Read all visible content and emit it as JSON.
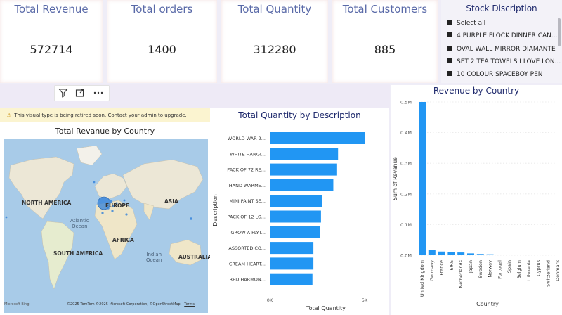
{
  "kpis": [
    {
      "title": "Total Revenue",
      "value": "572714"
    },
    {
      "title": "Total orders",
      "value": "1400"
    },
    {
      "title": "Total Quantity",
      "value": "312280"
    },
    {
      "title": "Total Customers",
      "value": "885"
    }
  ],
  "slicer": {
    "title": "Stock Discription",
    "items": [
      "Select all",
      "4 PURPLE FLOCK DINNER CAN...",
      "OVAL WALL MIRROR DIAMANTE",
      "SET 2 TEA TOWELS I LOVE LON...",
      "10 COLOUR SPACEBOY PEN"
    ]
  },
  "map": {
    "warning": "This visual type is being retired soon. Contact your admin to upgrade.",
    "title": "Total Revanue by Country",
    "labels": {
      "north_america": "NORTH AMERICA",
      "europe": "EUROPE",
      "asia": "ASIA",
      "atlantic": "Atlantic\nOcean",
      "south_america": "SOUTH AMERICA",
      "africa": "AFRICA",
      "indian": "Indian\nOcean",
      "australia": "AUSTRALIA"
    },
    "bing_logo": "Microsoft Bing",
    "copyright": "©2025 TomTom ©2025 Microsoft Corporation, ©OpenStreetMap",
    "terms": "Terms"
  },
  "qty_chart": {
    "title": "Total Quantity by Description",
    "xlabel": "Total Quantity",
    "ylabel": "Description",
    "ticks": [
      "0K",
      "5K"
    ],
    "categories": [
      "WORLD WAR 2...",
      "WHITE HANGI...",
      "PACK OF 72 RE...",
      "HAND WARME...",
      "MINI PAINT SE...",
      "PACK OF 12 LO...",
      "GROW A FLYT...",
      "ASSORTED CO...",
      "CREAM HEART...",
      "RED HARMON..."
    ],
    "values": [
      5000,
      3600,
      3550,
      3350,
      2750,
      2700,
      2650,
      2300,
      2300,
      2250
    ],
    "xmax": 5000
  },
  "rev_chart": {
    "title": "Revenue by Country",
    "xlabel": "Country",
    "ylabel": "Sum of Revanue",
    "yticks": [
      "0.0M",
      "0.1M",
      "0.2M",
      "0.3M",
      "0.4M",
      "0.5M"
    ],
    "categories": [
      "United Kingdom",
      "Germany",
      "France",
      "EIRE",
      "Netherlands",
      "Japan",
      "Sweden",
      "Norway",
      "Portugal",
      "Spain",
      "Belgium",
      "Lithuania",
      "Cyprus",
      "Switzerland",
      "Denmark"
    ],
    "values": [
      0.5,
      0.018,
      0.012,
      0.01,
      0.009,
      0.006,
      0.004,
      0.003,
      0.002,
      0.002,
      0.0015,
      0.001,
      0.001,
      0.001,
      0.001
    ],
    "ymax": 0.5
  },
  "colors": {
    "bar": "#2196f3",
    "kpi_title": "#5a6aa8",
    "chart_title": "#1f2a6d"
  }
}
